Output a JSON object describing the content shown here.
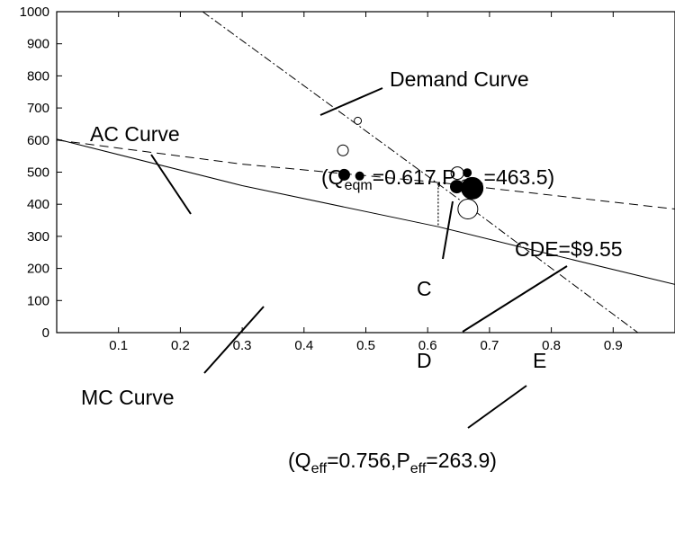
{
  "chart_data": {
    "type": "scatter",
    "xlim": [
      0,
      1
    ],
    "ylim": [
      0,
      1000
    ],
    "x_ticks": [
      "0.1",
      "0.2",
      "0.3",
      "0.4",
      "0.5",
      "0.6",
      "0.7",
      "0.8",
      "0.9"
    ],
    "y_ticks": [
      "0",
      "100",
      "200",
      "300",
      "400",
      "500",
      "600",
      "700",
      "800",
      "900",
      "1000"
    ],
    "grid": false,
    "lines": {
      "demand": {
        "label": "Demand Curve",
        "style": "dash-dot",
        "points": [
          [
            0.236,
            1000
          ],
          [
            0.617,
            463.5
          ],
          [
            0.756,
            263.9
          ],
          [
            0.94,
            0
          ]
        ]
      },
      "ac": {
        "label": "AC Curve",
        "style": "dashed",
        "points": [
          [
            0,
            600
          ],
          [
            0.3,
            525
          ],
          [
            0.617,
            468
          ],
          [
            1,
            385
          ]
        ]
      },
      "mc": {
        "label": "MC Curve",
        "style": "solid",
        "points": [
          [
            0,
            603
          ],
          [
            0.3,
            458
          ],
          [
            0.617,
            330
          ],
          [
            0.756,
            263.9
          ],
          [
            1,
            150
          ]
        ]
      }
    },
    "scatter": [
      {
        "x": 0.487,
        "y": 660,
        "r": 4,
        "filled": false
      },
      {
        "x": 0.463,
        "y": 568,
        "r": 6,
        "filled": false
      },
      {
        "x": 0.465,
        "y": 492,
        "r": 6,
        "filled": true
      },
      {
        "x": 0.49,
        "y": 488,
        "r": 4.5,
        "filled": true
      },
      {
        "x": 0.648,
        "y": 497,
        "r": 7,
        "filled": false
      },
      {
        "x": 0.664,
        "y": 498,
        "r": 4.5,
        "filled": true
      },
      {
        "x": 0.66,
        "y": 465,
        "r": 4,
        "filled": false
      },
      {
        "x": 0.647,
        "y": 455,
        "r": 7,
        "filled": true
      },
      {
        "x": 0.672,
        "y": 450,
        "r": 12,
        "filled": true
      },
      {
        "x": 0.665,
        "y": 385,
        "r": 11,
        "filled": false
      }
    ],
    "cde_segment": {
      "x": 0.617,
      "y_top": 463.5,
      "y_bottom": 330
    },
    "annotations": {
      "demand": "Demand Curve",
      "ac": "AC Curve",
      "mc": "MC Curve",
      "cde": "CDE=$9.55",
      "point_c": "C",
      "point_d": "D",
      "point_e": "E",
      "eqm": {
        "open": "(Q",
        "q_sub": "eqm",
        "mid": "=0.617,P",
        "p_sub": "eqm",
        "close": "=463.5)"
      },
      "eff": {
        "open": "(Q",
        "q_sub": "eff",
        "mid": "=0.756,P",
        "p_sub": "eff",
        "close": "=263.9)"
      }
    }
  }
}
